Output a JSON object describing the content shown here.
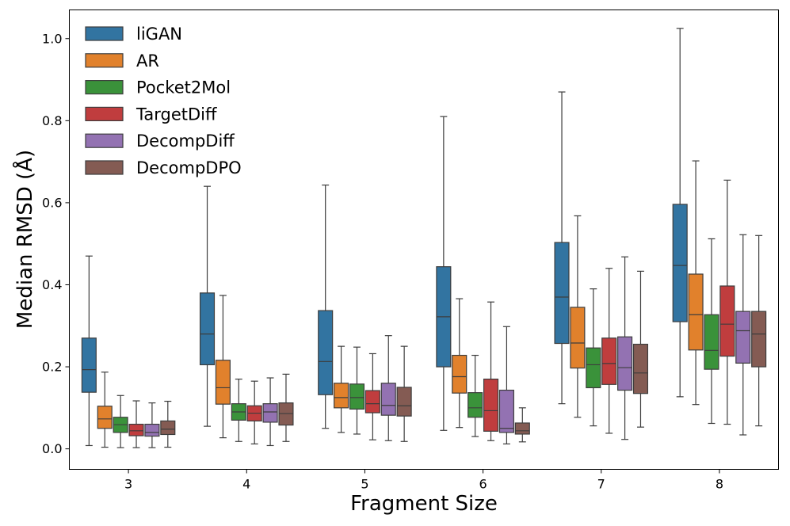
{
  "chart_data": {
    "type": "box",
    "title": "",
    "xlabel": "Fragment Size",
    "ylabel": "Median RMSD (Å)",
    "ylim": [
      -0.05,
      1.07
    ],
    "yticks": [
      "0.0",
      "0.2",
      "0.4",
      "0.6",
      "0.8",
      "1.0"
    ],
    "categories": [
      "3",
      "4",
      "5",
      "6",
      "7",
      "8"
    ],
    "legend_position": "top-left",
    "grid": false,
    "series": [
      {
        "name": "liGAN",
        "color": "#3274a1",
        "stats": [
          {
            "whislo": 0.008,
            "q1": 0.138,
            "med": 0.193,
            "q3": 0.27,
            "whishi": 0.47
          },
          {
            "whislo": 0.055,
            "q1": 0.205,
            "med": 0.28,
            "q3": 0.38,
            "whishi": 0.64
          },
          {
            "whislo": 0.05,
            "q1": 0.132,
            "med": 0.213,
            "q3": 0.337,
            "whishi": 0.643
          },
          {
            "whislo": 0.045,
            "q1": 0.2,
            "med": 0.322,
            "q3": 0.444,
            "whishi": 0.81
          },
          {
            "whislo": 0.11,
            "q1": 0.257,
            "med": 0.37,
            "q3": 0.503,
            "whishi": 0.87
          },
          {
            "whislo": 0.127,
            "q1": 0.31,
            "med": 0.447,
            "q3": 0.596,
            "whishi": 1.025
          }
        ]
      },
      {
        "name": "AR",
        "color": "#e1812c",
        "stats": [
          {
            "whislo": 0.004,
            "q1": 0.05,
            "med": 0.073,
            "q3": 0.104,
            "whishi": 0.187
          },
          {
            "whislo": 0.027,
            "q1": 0.109,
            "med": 0.149,
            "q3": 0.216,
            "whishi": 0.374
          },
          {
            "whislo": 0.04,
            "q1": 0.1,
            "med": 0.125,
            "q3": 0.16,
            "whishi": 0.25
          },
          {
            "whislo": 0.052,
            "q1": 0.136,
            "med": 0.176,
            "q3": 0.228,
            "whishi": 0.366
          },
          {
            "whislo": 0.077,
            "q1": 0.197,
            "med": 0.258,
            "q3": 0.345,
            "whishi": 0.568
          },
          {
            "whislo": 0.108,
            "q1": 0.241,
            "med": 0.327,
            "q3": 0.426,
            "whishi": 0.702
          }
        ]
      },
      {
        "name": "Pocket2Mol",
        "color": "#3a923a",
        "stats": [
          {
            "whislo": 0.003,
            "q1": 0.04,
            "med": 0.059,
            "q3": 0.077,
            "whishi": 0.13
          },
          {
            "whislo": 0.018,
            "q1": 0.07,
            "med": 0.09,
            "q3": 0.11,
            "whishi": 0.17
          },
          {
            "whislo": 0.036,
            "q1": 0.097,
            "med": 0.125,
            "q3": 0.158,
            "whishi": 0.248
          },
          {
            "whislo": 0.03,
            "q1": 0.077,
            "med": 0.1,
            "q3": 0.137,
            "whishi": 0.228
          },
          {
            "whislo": 0.056,
            "q1": 0.149,
            "med": 0.205,
            "q3": 0.246,
            "whishi": 0.39
          },
          {
            "whislo": 0.062,
            "q1": 0.194,
            "med": 0.24,
            "q3": 0.327,
            "whishi": 0.512
          }
        ]
      },
      {
        "name": "TargetDiff",
        "color": "#c03d3e",
        "stats": [
          {
            "whislo": 0.003,
            "q1": 0.032,
            "med": 0.044,
            "q3": 0.06,
            "whishi": 0.117
          },
          {
            "whislo": 0.012,
            "q1": 0.068,
            "med": 0.087,
            "q3": 0.105,
            "whishi": 0.165
          },
          {
            "whislo": 0.022,
            "q1": 0.088,
            "med": 0.11,
            "q3": 0.142,
            "whishi": 0.232
          },
          {
            "whislo": 0.02,
            "q1": 0.043,
            "med": 0.093,
            "q3": 0.17,
            "whishi": 0.358
          },
          {
            "whislo": 0.038,
            "q1": 0.157,
            "med": 0.208,
            "q3": 0.27,
            "whishi": 0.44
          },
          {
            "whislo": 0.06,
            "q1": 0.226,
            "med": 0.304,
            "q3": 0.397,
            "whishi": 0.655
          }
        ]
      },
      {
        "name": "DecompDiff",
        "color": "#9372b2",
        "stats": [
          {
            "whislo": 0.003,
            "q1": 0.031,
            "med": 0.04,
            "q3": 0.06,
            "whishi": 0.112
          },
          {
            "whislo": 0.008,
            "q1": 0.065,
            "med": 0.09,
            "q3": 0.11,
            "whishi": 0.173
          },
          {
            "whislo": 0.02,
            "q1": 0.082,
            "med": 0.106,
            "q3": 0.16,
            "whishi": 0.276
          },
          {
            "whislo": 0.012,
            "q1": 0.04,
            "med": 0.05,
            "q3": 0.143,
            "whishi": 0.298
          },
          {
            "whislo": 0.023,
            "q1": 0.143,
            "med": 0.198,
            "q3": 0.273,
            "whishi": 0.468
          },
          {
            "whislo": 0.034,
            "q1": 0.209,
            "med": 0.288,
            "q3": 0.335,
            "whishi": 0.522
          }
        ]
      },
      {
        "name": "DecompDPO",
        "color": "#845b53",
        "stats": [
          {
            "whislo": 0.004,
            "q1": 0.035,
            "med": 0.048,
            "q3": 0.068,
            "whishi": 0.116
          },
          {
            "whislo": 0.018,
            "q1": 0.058,
            "med": 0.086,
            "q3": 0.112,
            "whishi": 0.182
          },
          {
            "whislo": 0.018,
            "q1": 0.08,
            "med": 0.105,
            "q3": 0.15,
            "whishi": 0.25
          },
          {
            "whislo": 0.017,
            "q1": 0.036,
            "med": 0.044,
            "q3": 0.063,
            "whishi": 0.1
          },
          {
            "whislo": 0.053,
            "q1": 0.135,
            "med": 0.185,
            "q3": 0.255,
            "whishi": 0.433
          },
          {
            "whislo": 0.056,
            "q1": 0.2,
            "med": 0.28,
            "q3": 0.335,
            "whishi": 0.52
          }
        ]
      }
    ]
  }
}
